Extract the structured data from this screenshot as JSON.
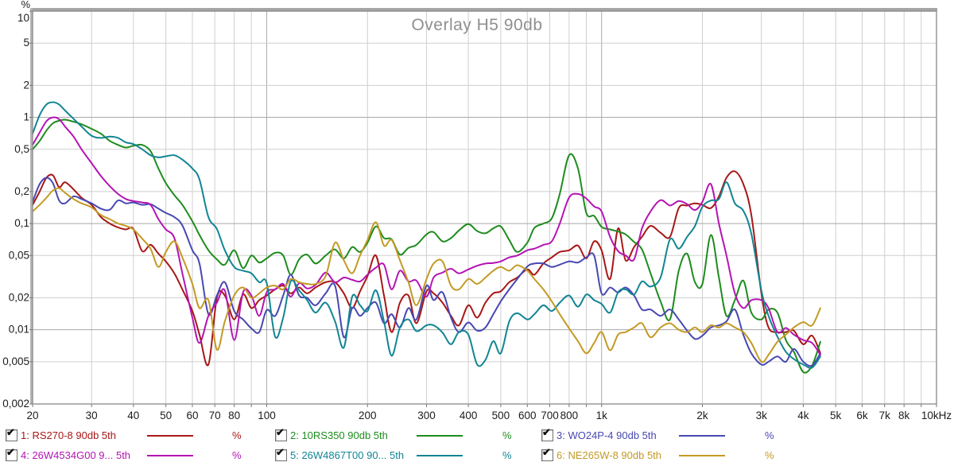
{
  "chart_data": {
    "type": "line",
    "title": "Overlay H5 90db",
    "xlabel": "",
    "ylabel": "%",
    "x_scale": "log",
    "y_scale": "log",
    "xlim": [
      20,
      10000
    ],
    "ylim": [
      0.002,
      10
    ],
    "grid": true,
    "legend_position": "bottom",
    "x_ticks": [
      {
        "f": 20,
        "label": "20",
        "kind": "edge"
      },
      {
        "f": 30,
        "label": "30",
        "kind": "minor"
      },
      {
        "f": 40,
        "label": "40",
        "kind": "minor"
      },
      {
        "f": 50,
        "label": "50",
        "kind": "minor"
      },
      {
        "f": 60,
        "label": "60",
        "kind": "minor"
      },
      {
        "f": 70,
        "label": "70",
        "kind": "minor"
      },
      {
        "f": 80,
        "label": "80",
        "kind": "minor"
      },
      {
        "f": 90,
        "label": "",
        "kind": "minor"
      },
      {
        "f": 100,
        "label": "100",
        "kind": "major"
      },
      {
        "f": 200,
        "label": "200",
        "kind": "minor"
      },
      {
        "f": 300,
        "label": "300",
        "kind": "minor"
      },
      {
        "f": 400,
        "label": "400",
        "kind": "minor"
      },
      {
        "f": 500,
        "label": "500",
        "kind": "minor"
      },
      {
        "f": 600,
        "label": "600",
        "kind": "minor"
      },
      {
        "f": 700,
        "label": "700",
        "kind": "minor"
      },
      {
        "f": 800,
        "label": "800",
        "kind": "minor"
      },
      {
        "f": 900,
        "label": "",
        "kind": "minor"
      },
      {
        "f": 1000,
        "label": "1k",
        "kind": "major"
      },
      {
        "f": 2000,
        "label": "2k",
        "kind": "minor"
      },
      {
        "f": 3000,
        "label": "3k",
        "kind": "minor"
      },
      {
        "f": 4000,
        "label": "4k",
        "kind": "minor"
      },
      {
        "f": 5000,
        "label": "5k",
        "kind": "minor"
      },
      {
        "f": 6000,
        "label": "6k",
        "kind": "minor"
      },
      {
        "f": 7000,
        "label": "7k",
        "kind": "minor"
      },
      {
        "f": 8000,
        "label": "8k",
        "kind": "minor"
      },
      {
        "f": 9000,
        "label": "",
        "kind": "minor"
      },
      {
        "f": 10000,
        "label": "10kHz",
        "kind": "edge"
      }
    ],
    "y_ticks": [
      {
        "v": 10,
        "label": "10",
        "kind": "edge"
      },
      {
        "v": 5,
        "label": "5",
        "kind": "minor"
      },
      {
        "v": 2,
        "label": "2",
        "kind": "minor"
      },
      {
        "v": 1,
        "label": "1",
        "kind": "major"
      },
      {
        "v": 0.5,
        "label": "0,5",
        "kind": "minor"
      },
      {
        "v": 0.2,
        "label": "0,2",
        "kind": "minor"
      },
      {
        "v": 0.1,
        "label": "0,1",
        "kind": "major"
      },
      {
        "v": 0.05,
        "label": "0,05",
        "kind": "minor"
      },
      {
        "v": 0.02,
        "label": "0,02",
        "kind": "minor"
      },
      {
        "v": 0.01,
        "label": "0,01",
        "kind": "major"
      },
      {
        "v": 0.005,
        "label": "0,005",
        "kind": "minor"
      },
      {
        "v": 0.002,
        "label": "0,002",
        "kind": "edge"
      }
    ],
    "frequencies": [
      20,
      21,
      22,
      23,
      24,
      25,
      26.5,
      28,
      30,
      32,
      34,
      36,
      38,
      40,
      42.5,
      45,
      47.5,
      50,
      53,
      56,
      60,
      63,
      67,
      71,
      75,
      80,
      85,
      90,
      95,
      100,
      106,
      112,
      118,
      125,
      132,
      140,
      150,
      160,
      170,
      180,
      190,
      200,
      212,
      224,
      236,
      250,
      265,
      280,
      300,
      315,
      335,
      355,
      375,
      400,
      425,
      450,
      475,
      500,
      530,
      560,
      600,
      630,
      670,
      710,
      750,
      800,
      850,
      900,
      950,
      1000,
      1060,
      1120,
      1180,
      1250,
      1320,
      1400,
      1500,
      1600,
      1700,
      1800,
      1900,
      2000,
      2120,
      2240,
      2360,
      2500,
      2650,
      2800,
      3000,
      3150,
      3350,
      3550,
      3750,
      4000,
      4250,
      4500
    ],
    "series": [
      {
        "name": "RS270-8 90db 5th",
        "color": "#a81717",
        "values": [
          0.15,
          0.2,
          0.27,
          0.285,
          0.22,
          0.245,
          0.21,
          0.175,
          0.15,
          0.115,
          0.1,
          0.092,
          0.088,
          0.089,
          0.055,
          0.063,
          0.052,
          0.044,
          0.034,
          0.024,
          0.015,
          0.009,
          0.0047,
          0.02,
          0.021,
          0.0125,
          0.0215,
          0.016,
          0.019,
          0.021,
          0.024,
          0.026,
          0.022,
          0.025,
          0.022,
          0.025,
          0.028,
          0.028,
          0.022,
          0.016,
          0.023,
          0.032,
          0.05,
          0.021,
          0.0095,
          0.018,
          0.021,
          0.0115,
          0.023,
          0.022,
          0.018,
          0.0135,
          0.011,
          0.017,
          0.013,
          0.018,
          0.022,
          0.023,
          0.028,
          0.031,
          0.037,
          0.033,
          0.042,
          0.048,
          0.054,
          0.056,
          0.062,
          0.047,
          0.068,
          0.056,
          0.03,
          0.09,
          0.045,
          0.06,
          0.075,
          0.095,
          0.082,
          0.075,
          0.14,
          0.148,
          0.155,
          0.15,
          0.14,
          0.18,
          0.27,
          0.31,
          0.235,
          0.12,
          0.022,
          0.0105,
          0.0095,
          0.0095,
          0.0098,
          0.0073,
          0.0088,
          0.006
        ]
      },
      {
        "name": "10RS350 90db 5th",
        "color": "#1e8c1e",
        "values": [
          0.5,
          0.6,
          0.75,
          0.88,
          0.93,
          0.95,
          0.91,
          0.86,
          0.78,
          0.7,
          0.6,
          0.55,
          0.52,
          0.54,
          0.55,
          0.48,
          0.33,
          0.24,
          0.185,
          0.15,
          0.105,
          0.078,
          0.056,
          0.046,
          0.041,
          0.056,
          0.038,
          0.05,
          0.043,
          0.047,
          0.053,
          0.05,
          0.033,
          0.046,
          0.051,
          0.042,
          0.05,
          0.057,
          0.047,
          0.06,
          0.054,
          0.066,
          0.094,
          0.073,
          0.071,
          0.051,
          0.059,
          0.063,
          0.079,
          0.083,
          0.068,
          0.073,
          0.086,
          0.099,
          0.085,
          0.081,
          0.09,
          0.094,
          0.07,
          0.054,
          0.066,
          0.091,
          0.1,
          0.112,
          0.19,
          0.44,
          0.33,
          0.126,
          0.118,
          0.093,
          0.088,
          0.084,
          0.079,
          0.067,
          0.057,
          0.034,
          0.0185,
          0.0125,
          0.036,
          0.052,
          0.028,
          0.027,
          0.078,
          0.031,
          0.0135,
          0.019,
          0.029,
          0.0145,
          0.0125,
          0.0155,
          0.0145,
          0.008,
          0.0062,
          0.004,
          0.0046,
          0.0077
        ]
      },
      {
        "name": "WO24P-4 90db 5th",
        "color": "#4848b2",
        "values": [
          0.16,
          0.235,
          0.27,
          0.24,
          0.165,
          0.155,
          0.18,
          0.17,
          0.155,
          0.138,
          0.135,
          0.165,
          0.155,
          0.158,
          0.15,
          0.152,
          0.138,
          0.126,
          0.115,
          0.096,
          0.056,
          0.042,
          0.014,
          0.021,
          0.028,
          0.015,
          0.0125,
          0.0103,
          0.0095,
          0.0153,
          0.0135,
          0.021,
          0.033,
          0.021,
          0.02,
          0.017,
          0.022,
          0.026,
          0.0085,
          0.016,
          0.0135,
          0.016,
          0.018,
          0.0115,
          0.014,
          0.0105,
          0.016,
          0.0125,
          0.026,
          0.019,
          0.0225,
          0.013,
          0.0095,
          0.0117,
          0.0098,
          0.0105,
          0.014,
          0.0185,
          0.024,
          0.03,
          0.0394,
          0.042,
          0.042,
          0.039,
          0.041,
          0.044,
          0.043,
          0.048,
          0.05,
          0.022,
          0.025,
          0.0225,
          0.025,
          0.021,
          0.0155,
          0.0155,
          0.0135,
          0.0155,
          0.0125,
          0.0098,
          0.0082,
          0.0088,
          0.0105,
          0.011,
          0.012,
          0.0155,
          0.009,
          0.006,
          0.0047,
          0.005,
          0.0056,
          0.005,
          0.0066,
          0.005,
          0.0046,
          0.006
        ]
      },
      {
        "name": "26W4534G00 90db 5th",
        "color": "#b414b4",
        "values": [
          0.55,
          0.72,
          0.92,
          1.0,
          0.96,
          0.82,
          0.66,
          0.5,
          0.37,
          0.28,
          0.225,
          0.19,
          0.17,
          0.163,
          0.158,
          0.15,
          0.11,
          0.088,
          0.073,
          0.034,
          0.013,
          0.0075,
          0.0135,
          0.018,
          0.0234,
          0.008,
          0.0225,
          0.021,
          0.0135,
          0.0225,
          0.024,
          0.027,
          0.0205,
          0.0275,
          0.0245,
          0.0265,
          0.0345,
          0.028,
          0.031,
          0.0295,
          0.0285,
          0.033,
          0.0385,
          0.041,
          0.024,
          0.036,
          0.0285,
          0.029,
          0.0205,
          0.031,
          0.0345,
          0.0375,
          0.034,
          0.037,
          0.04,
          0.042,
          0.0425,
          0.044,
          0.048,
          0.05,
          0.056,
          0.058,
          0.063,
          0.068,
          0.1,
          0.176,
          0.19,
          0.172,
          0.145,
          0.13,
          0.075,
          0.055,
          0.05,
          0.046,
          0.09,
          0.13,
          0.166,
          0.148,
          0.163,
          0.152,
          0.134,
          0.16,
          0.235,
          0.1,
          0.05,
          0.022,
          0.016,
          0.019,
          0.019,
          0.016,
          0.0095,
          0.0104,
          0.009,
          0.008,
          0.0075,
          0.0058
        ]
      },
      {
        "name": "26W4867T00 90db 5th",
        "color": "#128594",
        "values": [
          0.7,
          1.05,
          1.32,
          1.39,
          1.32,
          1.16,
          0.97,
          0.82,
          0.67,
          0.64,
          0.66,
          0.64,
          0.58,
          0.56,
          0.5,
          0.44,
          0.42,
          0.43,
          0.44,
          0.4,
          0.33,
          0.26,
          0.115,
          0.089,
          0.056,
          0.039,
          0.036,
          0.034,
          0.028,
          0.0275,
          0.0086,
          0.013,
          0.0285,
          0.0235,
          0.019,
          0.0145,
          0.018,
          0.012,
          0.0068,
          0.0205,
          0.017,
          0.015,
          0.0235,
          0.012,
          0.0057,
          0.0105,
          0.0125,
          0.0097,
          0.011,
          0.011,
          0.0094,
          0.0073,
          0.0095,
          0.009,
          0.0047,
          0.0052,
          0.0078,
          0.006,
          0.012,
          0.0143,
          0.0125,
          0.014,
          0.017,
          0.015,
          0.018,
          0.021,
          0.0165,
          0.0215,
          0.019,
          0.0175,
          0.0145,
          0.0225,
          0.024,
          0.0215,
          0.0285,
          0.0255,
          0.031,
          0.071,
          0.058,
          0.075,
          0.095,
          0.144,
          0.165,
          0.17,
          0.245,
          0.155,
          0.132,
          0.08,
          0.0234,
          0.0135,
          0.0086,
          0.0062,
          0.0053,
          0.0047,
          0.0044,
          0.0056
        ]
      },
      {
        "name": "NE265W-8 90db 5th",
        "color": "#c49a24",
        "values": [
          0.13,
          0.15,
          0.175,
          0.205,
          0.215,
          0.195,
          0.17,
          0.155,
          0.142,
          0.12,
          0.11,
          0.1,
          0.095,
          0.088,
          0.072,
          0.058,
          0.039,
          0.054,
          0.068,
          0.048,
          0.027,
          0.016,
          0.019,
          0.0065,
          0.012,
          0.021,
          0.025,
          0.02,
          0.022,
          0.025,
          0.026,
          0.024,
          0.03,
          0.028,
          0.027,
          0.027,
          0.032,
          0.066,
          0.045,
          0.034,
          0.05,
          0.07,
          0.103,
          0.062,
          0.07,
          0.045,
          0.028,
          0.017,
          0.03,
          0.042,
          0.044,
          0.026,
          0.024,
          0.03,
          0.027,
          0.031,
          0.036,
          0.039,
          0.036,
          0.0405,
          0.036,
          0.03,
          0.024,
          0.0185,
          0.014,
          0.0103,
          0.0078,
          0.006,
          0.0075,
          0.0095,
          0.0064,
          0.009,
          0.0095,
          0.0105,
          0.0115,
          0.0085,
          0.0105,
          0.0115,
          0.01,
          0.0095,
          0.0105,
          0.0095,
          0.011,
          0.0105,
          0.0115,
          0.0105,
          0.0095,
          0.0075,
          0.005,
          0.0058,
          0.0077,
          0.009,
          0.0105,
          0.0118,
          0.011,
          0.016
        ]
      }
    ]
  },
  "legend": {
    "items": [
      {
        "id": 1,
        "label": "1: RS270-8 90db 5th",
        "unit": "%",
        "checked": true,
        "color": "#a81717"
      },
      {
        "id": 2,
        "label": "2: 10RS350 90db 5th",
        "unit": "%",
        "checked": true,
        "color": "#1e8c1e"
      },
      {
        "id": 3,
        "label": "3: WO24P-4 90db 5th",
        "unit": "%",
        "checked": true,
        "color": "#4848b2"
      },
      {
        "id": 4,
        "label": "4: 26W4534G00 9... 5th",
        "unit": "%",
        "checked": true,
        "color": "#b414b4"
      },
      {
        "id": 5,
        "label": "5: 26W4867T00 90... 5th",
        "unit": "%",
        "checked": true,
        "color": "#128594"
      },
      {
        "id": 6,
        "label": "6: NE265W-8 90db 5th",
        "unit": "%",
        "checked": true,
        "color": "#c49a24"
      }
    ]
  },
  "style": {
    "title_color": "#8f8f8f",
    "axis_text_color": "#1c1c1c",
    "grid_minor_color": "#cfcfcf",
    "grid_major_color": "#a8a8a8",
    "border_color": "#888888",
    "bevel_top_color": "#a5a5a5",
    "bevel_left_color": "#b5b5b5"
  }
}
